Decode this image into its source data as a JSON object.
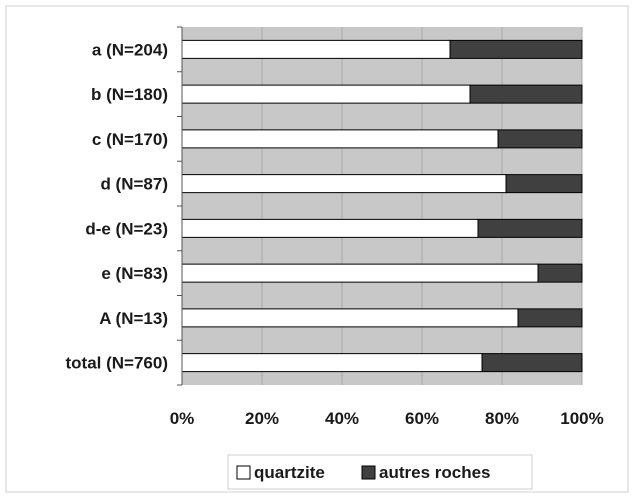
{
  "chart_data": {
    "type": "bar",
    "orientation": "horizontal",
    "stacked": "percent",
    "categories": [
      "a (N=204)",
      "b (N=180)",
      "c (N=170)",
      "d (N=87)",
      "d-e (N=23)",
      "e (N=83)",
      "A (N=13)",
      "total (N=760)"
    ],
    "series": [
      {
        "name": "quartzite",
        "values": [
          67,
          72,
          79,
          81,
          74,
          89,
          84,
          75
        ],
        "color": "#ffffff"
      },
      {
        "name": "autres roches",
        "values": [
          33,
          28,
          21,
          19,
          26,
          11,
          16,
          25
        ],
        "color": "#404040"
      }
    ],
    "x_ticks": [
      "0%",
      "20%",
      "40%",
      "60%",
      "80%",
      "100%"
    ],
    "xlim": [
      0,
      100
    ],
    "grid": true,
    "plot_background": "#c8c8c8",
    "legend_position": "bottom"
  }
}
